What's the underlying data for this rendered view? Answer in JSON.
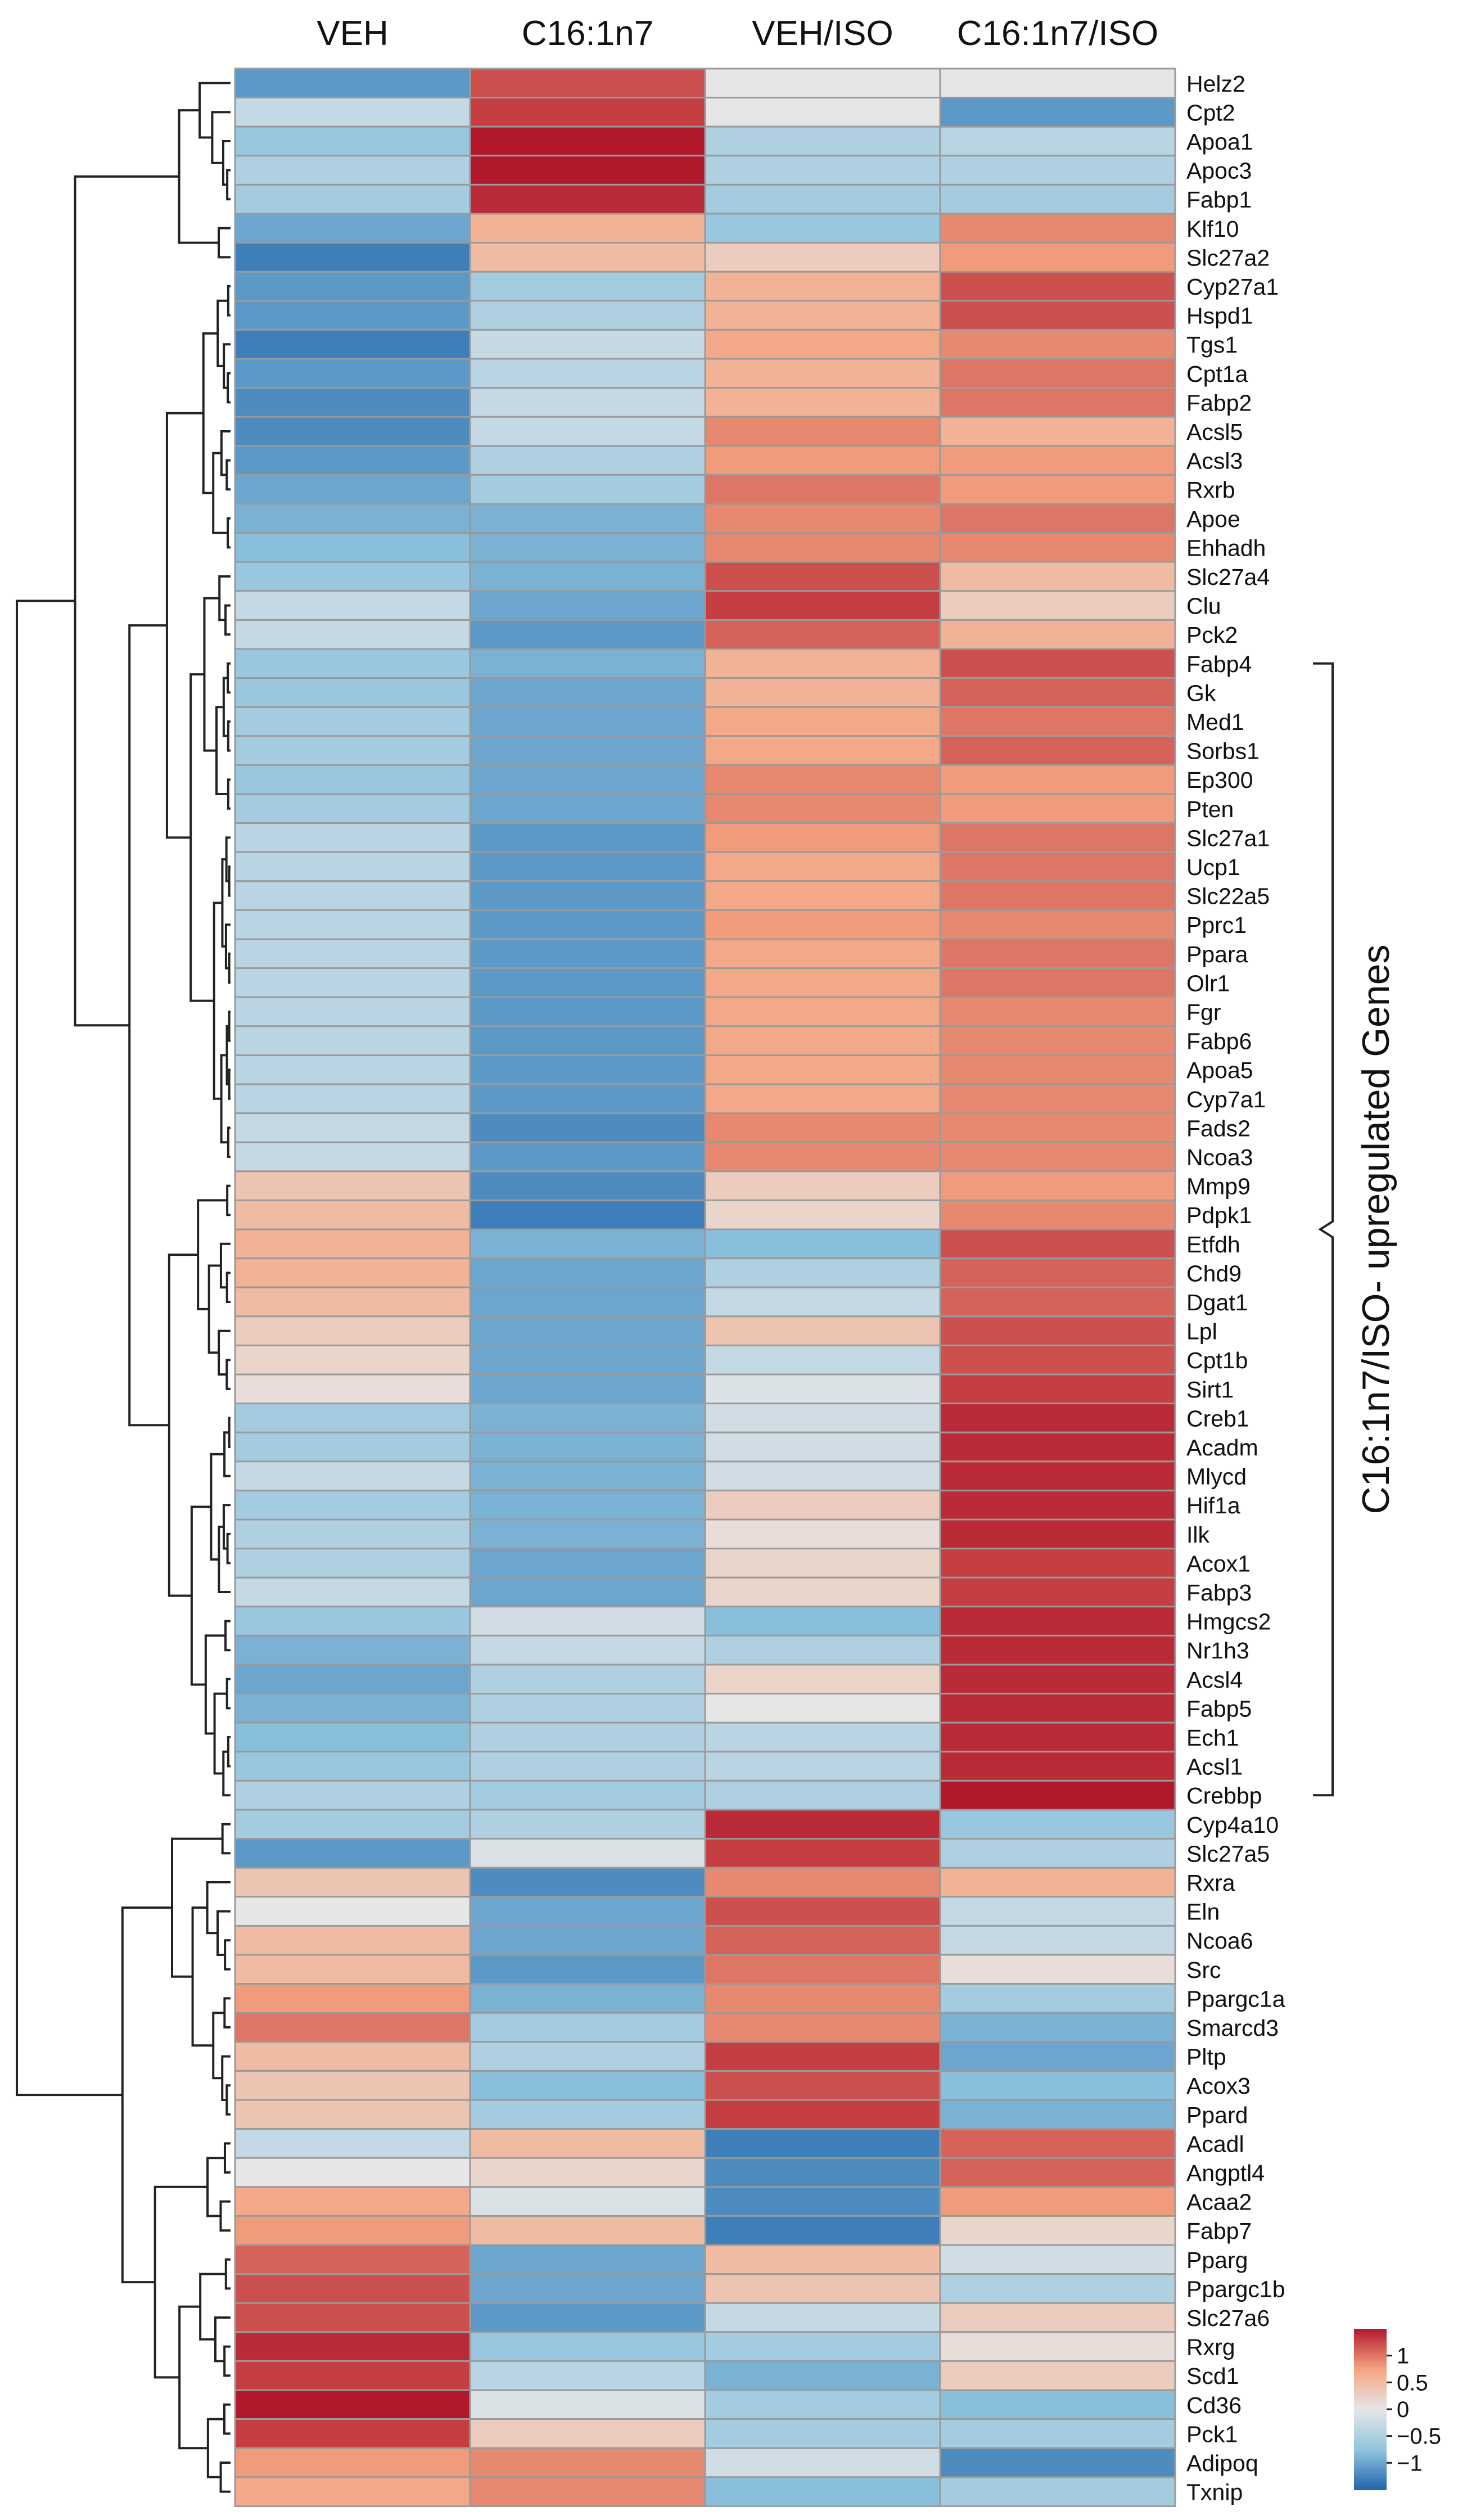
{
  "chart_data": {
    "type": "heatmap",
    "title": "",
    "columns": [
      "VEH",
      "C16:1n7",
      "VEH/ISO",
      "C16:1n7/ISO"
    ],
    "genes": [
      "Helz2",
      "Cpt2",
      "Apoa1",
      "Apoc3",
      "Fabp1",
      "Klf10",
      "Slc27a2",
      "Cyp27a1",
      "Hspd1",
      "Tgs1",
      "Cpt1a",
      "Fabp2",
      "Acsl5",
      "Acsl3",
      "Rxrb",
      "Apoe",
      "Ehhadh",
      "Slc27a4",
      "Clu",
      "Pck2",
      "Fabp4",
      "Gk",
      "Med1",
      "Sorbs1",
      "Ep300",
      "Pten",
      "Slc27a1",
      "Ucp1",
      "Slc22a5",
      "Pprc1",
      "Ppara",
      "Olr1",
      "Fgr",
      "Fabp6",
      "Apoa5",
      "Cyp7a1",
      "Fads2",
      "Ncoa3",
      "Mmp9",
      "Pdpk1",
      "Etfdh",
      "Chd9",
      "Dgat1",
      "Lpl",
      "Cpt1b",
      "Sirt1",
      "Creb1",
      "Acadm",
      "Mlycd",
      "Hif1a",
      "Ilk",
      "Acox1",
      "Fabp3",
      "Hmgcs2",
      "Nr1h3",
      "Acsl4",
      "Fabp5",
      "Ech1",
      "Acsl1",
      "Crebbp",
      "Cyp4a10",
      "Slc27a5",
      "Rxra",
      "Eln",
      "Ncoa6",
      "Src",
      "Ppargc1a",
      "Smarcd3",
      "Pltp",
      "Acox3",
      "Ppard",
      "Acadl",
      "Angptl4",
      "Acaa2",
      "Fabp7",
      "Pparg",
      "Ppargc1b",
      "Slc27a6",
      "Rxrg",
      "Scd1",
      "Cd36",
      "Pck1",
      "Adipoq",
      "Txnip"
    ],
    "values": [
      [
        -1.1,
        1.2,
        0.0,
        0.0
      ],
      [
        -0.3,
        1.3,
        0.0,
        -1.1
      ],
      [
        -0.7,
        1.5,
        -0.5,
        -0.4
      ],
      [
        -0.5,
        1.5,
        -0.5,
        -0.5
      ],
      [
        -0.6,
        1.4,
        -0.6,
        -0.6
      ],
      [
        -1.0,
        0.6,
        -0.7,
        0.9
      ],
      [
        -1.3,
        0.5,
        0.3,
        0.8
      ],
      [
        -1.1,
        -0.6,
        0.6,
        1.2
      ],
      [
        -1.1,
        -0.5,
        0.6,
        1.2
      ],
      [
        -1.3,
        -0.3,
        0.7,
        0.9
      ],
      [
        -1.1,
        -0.4,
        0.6,
        1.0
      ],
      [
        -1.2,
        -0.3,
        0.6,
        1.0
      ],
      [
        -1.2,
        -0.3,
        0.9,
        0.6
      ],
      [
        -1.1,
        -0.5,
        0.8,
        0.8
      ],
      [
        -1.0,
        -0.6,
        1.0,
        0.8
      ],
      [
        -0.9,
        -0.9,
        0.9,
        1.0
      ],
      [
        -0.8,
        -0.9,
        0.9,
        0.9
      ],
      [
        -0.7,
        -0.9,
        1.2,
        0.5
      ],
      [
        -0.3,
        -1.0,
        1.3,
        0.3
      ],
      [
        -0.3,
        -1.1,
        1.1,
        0.6
      ],
      [
        -0.7,
        -0.9,
        0.6,
        1.2
      ],
      [
        -0.7,
        -1.0,
        0.6,
        1.1
      ],
      [
        -0.6,
        -1.0,
        0.7,
        1.0
      ],
      [
        -0.6,
        -1.0,
        0.7,
        1.1
      ],
      [
        -0.7,
        -1.0,
        0.9,
        0.8
      ],
      [
        -0.6,
        -1.0,
        0.9,
        0.8
      ],
      [
        -0.4,
        -1.1,
        0.8,
        1.0
      ],
      [
        -0.4,
        -1.1,
        0.7,
        1.0
      ],
      [
        -0.4,
        -1.1,
        0.7,
        1.0
      ],
      [
        -0.4,
        -1.1,
        0.8,
        0.9
      ],
      [
        -0.4,
        -1.1,
        0.7,
        1.0
      ],
      [
        -0.4,
        -1.1,
        0.7,
        1.0
      ],
      [
        -0.4,
        -1.1,
        0.7,
        0.9
      ],
      [
        -0.4,
        -1.1,
        0.7,
        0.9
      ],
      [
        -0.4,
        -1.1,
        0.7,
        0.9
      ],
      [
        -0.4,
        -1.1,
        0.7,
        0.9
      ],
      [
        -0.3,
        -1.2,
        0.9,
        0.9
      ],
      [
        -0.3,
        -1.1,
        0.9,
        0.9
      ],
      [
        0.4,
        -1.2,
        0.3,
        0.8
      ],
      [
        0.5,
        -1.3,
        0.2,
        0.9
      ],
      [
        0.6,
        -0.9,
        -0.8,
        1.2
      ],
      [
        0.6,
        -1.0,
        -0.5,
        1.1
      ],
      [
        0.5,
        -1.0,
        -0.3,
        1.1
      ],
      [
        0.3,
        -1.0,
        0.4,
        1.2
      ],
      [
        0.2,
        -1.0,
        -0.3,
        1.2
      ],
      [
        0.1,
        -1.0,
        -0.1,
        1.3
      ],
      [
        -0.6,
        -0.9,
        -0.2,
        1.4
      ],
      [
        -0.6,
        -0.9,
        -0.2,
        1.4
      ],
      [
        -0.3,
        -0.9,
        -0.2,
        1.4
      ],
      [
        -0.6,
        -0.9,
        0.3,
        1.4
      ],
      [
        -0.5,
        -0.9,
        0.1,
        1.4
      ],
      [
        -0.5,
        -1.0,
        0.2,
        1.3
      ],
      [
        -0.3,
        -1.0,
        0.2,
        1.3
      ],
      [
        -0.7,
        -0.2,
        -0.8,
        1.4
      ],
      [
        -0.9,
        -0.3,
        -0.5,
        1.4
      ],
      [
        -1.0,
        -0.5,
        0.2,
        1.4
      ],
      [
        -0.9,
        -0.5,
        0.0,
        1.4
      ],
      [
        -0.8,
        -0.5,
        -0.4,
        1.4
      ],
      [
        -0.7,
        -0.5,
        -0.4,
        1.4
      ],
      [
        -0.5,
        -0.6,
        -0.5,
        1.5
      ],
      [
        -0.6,
        -0.5,
        1.4,
        -0.7
      ],
      [
        -1.1,
        -0.1,
        1.3,
        -0.5
      ],
      [
        0.4,
        -1.2,
        0.9,
        0.6
      ],
      [
        0.0,
        -1.0,
        1.2,
        -0.3
      ],
      [
        0.5,
        -1.0,
        1.1,
        -0.3
      ],
      [
        0.5,
        -1.1,
        1.0,
        0.1
      ],
      [
        0.8,
        -0.9,
        0.9,
        -0.6
      ],
      [
        1.0,
        -0.6,
        0.9,
        -0.9
      ],
      [
        0.5,
        -0.5,
        1.3,
        -1.0
      ],
      [
        0.4,
        -0.8,
        1.2,
        -0.8
      ],
      [
        0.4,
        -0.6,
        1.3,
        -0.9
      ],
      [
        -0.3,
        0.5,
        -1.3,
        1.1
      ],
      [
        0.0,
        0.2,
        -1.2,
        1.1
      ],
      [
        0.7,
        -0.1,
        -1.2,
        0.8
      ],
      [
        0.8,
        0.5,
        -1.3,
        0.2
      ],
      [
        1.1,
        -1.0,
        0.5,
        -0.2
      ],
      [
        1.2,
        -1.0,
        0.4,
        -0.5
      ],
      [
        1.2,
        -1.1,
        -0.3,
        0.3
      ],
      [
        1.4,
        -0.7,
        -0.6,
        0.1
      ],
      [
        1.3,
        -0.4,
        -0.9,
        0.3
      ],
      [
        1.5,
        -0.1,
        -0.6,
        -0.8
      ],
      [
        1.3,
        0.3,
        -0.6,
        -0.6
      ],
      [
        0.8,
        0.9,
        -0.2,
        -1.2
      ],
      [
        0.7,
        0.9,
        -0.8,
        -0.6
      ]
    ],
    "bracket_genes": [
      "Fabp4",
      "Crebbp"
    ],
    "bracket_label": "C16:1n7/ISO- upregulated Genes",
    "legend": {
      "ticks": [
        1,
        0.5,
        0,
        -0.5,
        -1
      ],
      "tick_labels": [
        "1",
        "0.5",
        "0",
        "−0.5",
        "−1"
      ],
      "range": [
        -1.5,
        1.5
      ],
      "placement": "bottom-right",
      "colors": {
        "low": "#2166ac",
        "mid_low": "#92c5de",
        "mid": "#e6e6e6",
        "mid_high": "#f4a582",
        "high": "#b2182b"
      }
    },
    "dendrogram_order": "rows clustered"
  }
}
